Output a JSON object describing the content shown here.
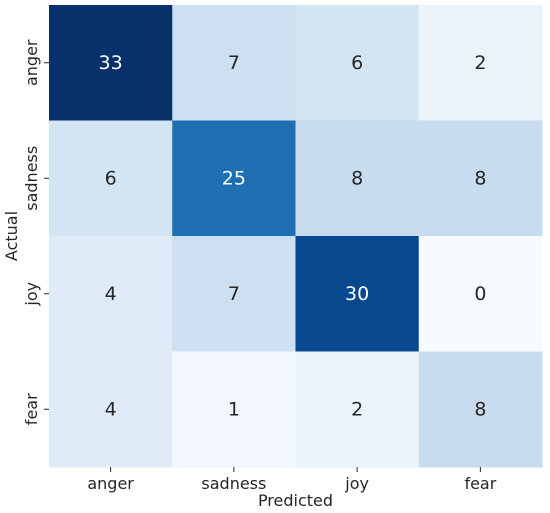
{
  "chart_data": {
    "type": "heatmap",
    "title": "",
    "xlabel": "Predicted",
    "ylabel": "Actual",
    "x_categories": [
      "anger",
      "sadness",
      "joy",
      "fear"
    ],
    "y_categories": [
      "anger",
      "sadness",
      "joy",
      "fear"
    ],
    "values": [
      [
        33,
        7,
        6,
        2
      ],
      [
        6,
        25,
        8,
        8
      ],
      [
        4,
        7,
        30,
        0
      ],
      [
        4,
        1,
        2,
        8
      ]
    ],
    "color_range": [
      0,
      33
    ],
    "colormap": "Blues",
    "colorbar": false,
    "grid": false
  }
}
